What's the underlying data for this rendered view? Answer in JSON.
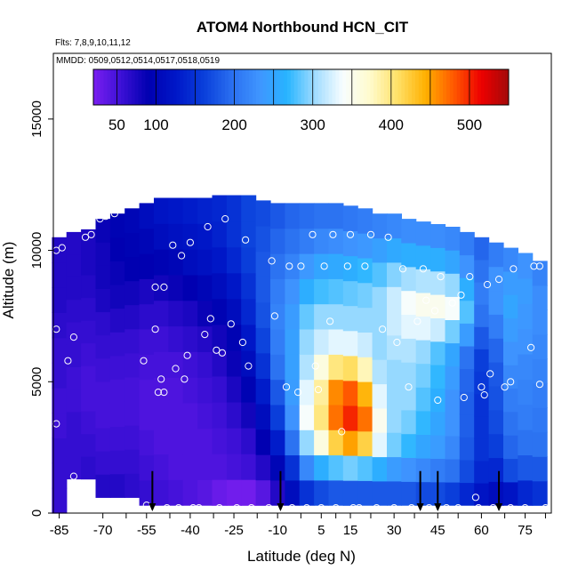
{
  "chart_data": {
    "type": "heatmap",
    "title": "ATOM4 Northbound HCN_CIT",
    "subtitle": "Flts: 7,8,9,10,11,12",
    "annotation": "MMDD: 0509,0512,0514,0517,0518,0519",
    "xlabel": "Latitude (deg N)",
    "ylabel": "Altitude (m)",
    "xlim": [
      -87,
      84
    ],
    "ylim": [
      0,
      17500
    ],
    "x_ticks": [
      -85,
      -70,
      -55,
      -40,
      -25,
      -10,
      5,
      15,
      30,
      45,
      60,
      75
    ],
    "y_ticks": [
      0,
      5000,
      10000,
      15000
    ],
    "colorbar": {
      "range": [
        20,
        550
      ],
      "ticks": [
        50,
        100,
        200,
        300,
        400,
        500
      ],
      "colors": [
        "#7a1ff0",
        "#3c10d6",
        "#0000b0",
        "#0018c8",
        "#0a3fdb",
        "#2a6ff0",
        "#3f95ff",
        "#28b4ff",
        "#9fdcff",
        "#f7fdff",
        "#fffbcc",
        "#ffe066",
        "#ffb000",
        "#ff5a00",
        "#ee0000",
        "#a30a0a"
      ]
    },
    "profiles": [
      {
        "lat": -85,
        "bottom": 0,
        "top": 10500,
        "values": [
          60,
          60,
          60,
          55,
          55,
          60,
          60,
          65,
          70,
          70,
          70
        ]
      },
      {
        "lat": -80,
        "bottom": 1300,
        "top": 10700,
        "values": [
          60,
          60,
          60,
          55,
          55,
          60,
          60,
          65,
          70,
          70,
          70
        ]
      },
      {
        "lat": -75,
        "bottom": 1300,
        "top": 10800,
        "values": [
          65,
          60,
          55,
          50,
          50,
          55,
          60,
          65,
          70,
          75,
          75
        ]
      },
      {
        "lat": -70,
        "bottom": 600,
        "top": 11200,
        "values": [
          70,
          60,
          55,
          50,
          50,
          55,
          60,
          65,
          75,
          80,
          80,
          85
        ]
      },
      {
        "lat": -65,
        "bottom": 600,
        "top": 11400,
        "values": [
          70,
          60,
          55,
          50,
          50,
          55,
          60,
          70,
          80,
          85,
          90,
          95
        ]
      },
      {
        "lat": -60,
        "bottom": 600,
        "top": 11600,
        "values": [
          65,
          60,
          55,
          50,
          50,
          55,
          60,
          70,
          80,
          90,
          95,
          100
        ]
      },
      {
        "lat": -55,
        "bottom": 300,
        "top": 11800,
        "values": [
          60,
          55,
          50,
          45,
          45,
          50,
          55,
          65,
          75,
          90,
          100,
          110
        ]
      },
      {
        "lat": -50,
        "bottom": 300,
        "top": 12000,
        "values": [
          55,
          50,
          45,
          45,
          45,
          50,
          55,
          65,
          80,
          95,
          110,
          120
        ]
      },
      {
        "lat": -45,
        "bottom": 300,
        "top": 12000,
        "values": [
          50,
          45,
          45,
          45,
          45,
          50,
          60,
          70,
          85,
          100,
          115,
          125
        ]
      },
      {
        "lat": -40,
        "bottom": 300,
        "top": 12000,
        "values": [
          45,
          45,
          45,
          45,
          50,
          55,
          65,
          75,
          90,
          110,
          120,
          130
        ]
      },
      {
        "lat": -35,
        "bottom": 300,
        "top": 12000,
        "values": [
          40,
          45,
          45,
          50,
          55,
          60,
          70,
          85,
          100,
          115,
          125,
          135
        ]
      },
      {
        "lat": -30,
        "bottom": 300,
        "top": 12100,
        "values": [
          30,
          45,
          50,
          55,
          60,
          70,
          80,
          95,
          110,
          125,
          135,
          140
        ]
      },
      {
        "lat": -25,
        "bottom": 300,
        "top": 12100,
        "values": [
          25,
          50,
          55,
          65,
          75,
          85,
          95,
          110,
          125,
          140,
          150,
          150
        ]
      },
      {
        "lat": -20,
        "bottom": 300,
        "top": 12100,
        "values": [
          25,
          55,
          65,
          80,
          95,
          110,
          125,
          140,
          150,
          160,
          165,
          165
        ]
      },
      {
        "lat": -15,
        "bottom": 300,
        "top": 11900,
        "values": [
          40,
          70,
          90,
          110,
          130,
          150,
          165,
          175,
          180,
          180,
          175,
          170
        ]
      },
      {
        "lat": -10,
        "bottom": 300,
        "top": 11800,
        "values": [
          70,
          100,
          130,
          160,
          180,
          200,
          210,
          215,
          210,
          200,
          190,
          180
        ]
      },
      {
        "lat": -5,
        "bottom": 300,
        "top": 11800,
        "values": [
          110,
          150,
          200,
          230,
          240,
          245,
          245,
          240,
          230,
          215,
          200,
          190
        ]
      },
      {
        "lat": 0,
        "bottom": 300,
        "top": 11800,
        "values": [
          150,
          220,
          300,
          340,
          330,
          310,
          300,
          285,
          260,
          235,
          210,
          195
        ]
      },
      {
        "lat": 5,
        "bottom": 300,
        "top": 11800,
        "values": [
          170,
          260,
          360,
          400,
          390,
          360,
          320,
          300,
          275,
          250,
          220,
          200
        ]
      },
      {
        "lat": 10,
        "bottom": 300,
        "top": 11800,
        "values": [
          180,
          280,
          420,
          470,
          460,
          400,
          330,
          300,
          280,
          255,
          225,
          200
        ]
      },
      {
        "lat": 15,
        "bottom": 300,
        "top": 11700,
        "values": [
          180,
          290,
          450,
          500,
          480,
          410,
          330,
          300,
          285,
          260,
          230,
          205
        ]
      },
      {
        "lat": 20,
        "bottom": 300,
        "top": 11600,
        "values": [
          180,
          280,
          420,
          470,
          440,
          380,
          320,
          300,
          290,
          270,
          235,
          210
        ]
      },
      {
        "lat": 25,
        "bottom": 300,
        "top": 11400,
        "values": [
          180,
          260,
          330,
          350,
          330,
          310,
          300,
          300,
          300,
          280,
          245,
          215
        ]
      },
      {
        "lat": 30,
        "bottom": 300,
        "top": 11400,
        "values": [
          180,
          240,
          290,
          300,
          300,
          300,
          310,
          320,
          320,
          295,
          255,
          220
        ]
      },
      {
        "lat": 35,
        "bottom": 300,
        "top": 11200,
        "values": [
          180,
          230,
          270,
          290,
          300,
          300,
          310,
          330,
          340,
          305,
          260,
          225
        ]
      },
      {
        "lat": 40,
        "bottom": 300,
        "top": 11100,
        "values": [
          170,
          220,
          250,
          270,
          280,
          290,
          300,
          330,
          350,
          310,
          260,
          225
        ]
      },
      {
        "lat": 45,
        "bottom": 300,
        "top": 11000,
        "values": [
          170,
          210,
          240,
          250,
          260,
          270,
          280,
          320,
          350,
          310,
          260,
          225
        ]
      },
      {
        "lat": 50,
        "bottom": 300,
        "top": 10900,
        "values": [
          160,
          200,
          220,
          230,
          230,
          240,
          250,
          290,
          340,
          300,
          250,
          220
        ]
      },
      {
        "lat": 55,
        "bottom": 300,
        "top": 10700,
        "values": [
          140,
          170,
          180,
          185,
          185,
          190,
          200,
          240,
          280,
          260,
          230,
          210
        ]
      },
      {
        "lat": 60,
        "bottom": 300,
        "top": 10500,
        "values": [
          120,
          140,
          150,
          150,
          150,
          155,
          160,
          180,
          200,
          210,
          200,
          190
        ]
      },
      {
        "lat": 65,
        "bottom": 300,
        "top": 10300,
        "values": [
          110,
          140,
          160,
          170,
          175,
          180,
          190,
          210,
          230,
          230,
          210
        ]
      },
      {
        "lat": 70,
        "bottom": 300,
        "top": 10100,
        "values": [
          120,
          170,
          190,
          200,
          210,
          220,
          230,
          240,
          250,
          240,
          220
        ]
      },
      {
        "lat": 75,
        "bottom": 300,
        "top": 9900,
        "values": [
          140,
          180,
          200,
          210,
          215,
          220,
          230,
          235,
          240,
          230
        ]
      },
      {
        "lat": 80,
        "bottom": 300,
        "top": 9600,
        "values": [
          150,
          180,
          200,
          205,
          210,
          215,
          220,
          225,
          225,
          215
        ]
      }
    ],
    "sample_points": [
      [
        -86,
        10000
      ],
      [
        -86,
        7000
      ],
      [
        -86,
        3400
      ],
      [
        -84,
        10100
      ],
      [
        -82,
        5800
      ],
      [
        -80,
        6700
      ],
      [
        -80,
        1400
      ],
      [
        -76,
        10500
      ],
      [
        -74,
        10600
      ],
      [
        -71,
        11200
      ],
      [
        -69,
        11300
      ],
      [
        -66,
        11400
      ],
      [
        -56,
        5800
      ],
      [
        -55,
        300
      ],
      [
        -52,
        8600
      ],
      [
        -52,
        7000
      ],
      [
        -51,
        4600
      ],
      [
        -50,
        5100
      ],
      [
        -49,
        8600
      ],
      [
        -49,
        4600
      ],
      [
        -48,
        200
      ],
      [
        -46,
        10200
      ],
      [
        -45,
        5500
      ],
      [
        -44,
        200
      ],
      [
        -43,
        9800
      ],
      [
        -42,
        5100
      ],
      [
        -41,
        6000
      ],
      [
        -40,
        10300
      ],
      [
        -39,
        200
      ],
      [
        -37,
        200
      ],
      [
        -35,
        6800
      ],
      [
        -34,
        10900
      ],
      [
        -33,
        7400
      ],
      [
        -31,
        6200
      ],
      [
        -30,
        200
      ],
      [
        -29,
        6100
      ],
      [
        -28,
        11200
      ],
      [
        -26,
        7200
      ],
      [
        -24,
        200
      ],
      [
        -22,
        6500
      ],
      [
        -21,
        10400
      ],
      [
        -20,
        5600
      ],
      [
        -19,
        200
      ],
      [
        -16,
        12100
      ],
      [
        -13,
        200
      ],
      [
        -12,
        9600
      ],
      [
        -11,
        7500
      ],
      [
        -9,
        200
      ],
      [
        -7,
        4800
      ],
      [
        -6,
        9400
      ],
      [
        -5,
        200
      ],
      [
        -3,
        4600
      ],
      [
        -2,
        9400
      ],
      [
        0,
        200
      ],
      [
        2,
        10600
      ],
      [
        3,
        5600
      ],
      [
        4,
        4700
      ],
      [
        5,
        200
      ],
      [
        6,
        9400
      ],
      [
        8,
        7300
      ],
      [
        9,
        10600
      ],
      [
        10,
        200
      ],
      [
        12,
        3100
      ],
      [
        14,
        9400
      ],
      [
        15,
        10600
      ],
      [
        16,
        200
      ],
      [
        18,
        200
      ],
      [
        20,
        9400
      ],
      [
        22,
        10600
      ],
      [
        24,
        200
      ],
      [
        26,
        7000
      ],
      [
        28,
        10500
      ],
      [
        30,
        200
      ],
      [
        31,
        6500
      ],
      [
        33,
        9300
      ],
      [
        35,
        4800
      ],
      [
        36,
        200
      ],
      [
        38,
        7300
      ],
      [
        40,
        9300
      ],
      [
        41,
        8100
      ],
      [
        42,
        200
      ],
      [
        44,
        7700
      ],
      [
        45,
        4300
      ],
      [
        46,
        9000
      ],
      [
        48,
        200
      ],
      [
        50,
        8000
      ],
      [
        52,
        200
      ],
      [
        53,
        8300
      ],
      [
        54,
        4400
      ],
      [
        56,
        9000
      ],
      [
        58,
        600
      ],
      [
        59,
        200
      ],
      [
        60,
        4800
      ],
      [
        61,
        4500
      ],
      [
        62,
        8700
      ],
      [
        63,
        5300
      ],
      [
        64,
        200
      ],
      [
        65,
        10600
      ],
      [
        66,
        8900
      ],
      [
        68,
        4800
      ],
      [
        69,
        10700
      ],
      [
        70,
        200
      ],
      [
        70,
        5000
      ],
      [
        71,
        9300
      ],
      [
        72,
        10900
      ],
      [
        75,
        200
      ],
      [
        77,
        6300
      ],
      [
        78,
        9400
      ],
      [
        80,
        9400
      ],
      [
        80,
        4900
      ],
      [
        82,
        200
      ]
    ],
    "arrow_lats": [
      -53,
      -9,
      39,
      45,
      66
    ],
    "tick_mark_lats": [
      -62,
      -47,
      -32,
      -17,
      -2,
      10,
      22,
      37,
      52,
      68,
      82
    ]
  }
}
